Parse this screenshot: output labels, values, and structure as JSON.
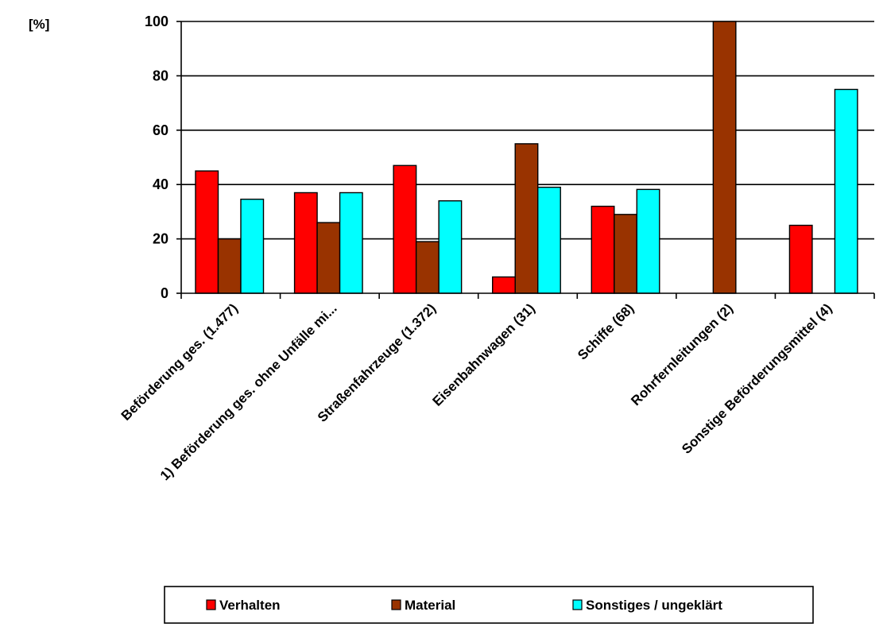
{
  "chart_data": {
    "type": "bar",
    "unit_label": "[%]",
    "categories": [
      "Beförderung ges. (1.477)",
      "1) Beförderung ges. ohne Unfälle mi...",
      "Straßenfahrzeuge (1.372)",
      "Eisenbahnwagen (31)",
      "Schiffe (68)",
      "Rohrfernleitungen (2)",
      "Sonstige Beförderungsmittel (4)"
    ],
    "series": [
      {
        "name": "Verhalten",
        "color": "#ff0000",
        "values": [
          45,
          37,
          47,
          6,
          32,
          0,
          25
        ]
      },
      {
        "name": "Material",
        "color": "#993300",
        "values": [
          20,
          26,
          19,
          55,
          29,
          100,
          0
        ]
      },
      {
        "name": "Sonstiges / ungeklärt",
        "color": "#00ffff",
        "values": [
          34.6,
          37,
          34,
          39,
          38.2,
          0,
          75
        ]
      }
    ],
    "ylim": [
      0,
      100
    ],
    "yticks": [
      0,
      20,
      40,
      60,
      80,
      100
    ],
    "grid": true,
    "legend_position": "bottom",
    "xlabel": "",
    "ylabel": ""
  }
}
